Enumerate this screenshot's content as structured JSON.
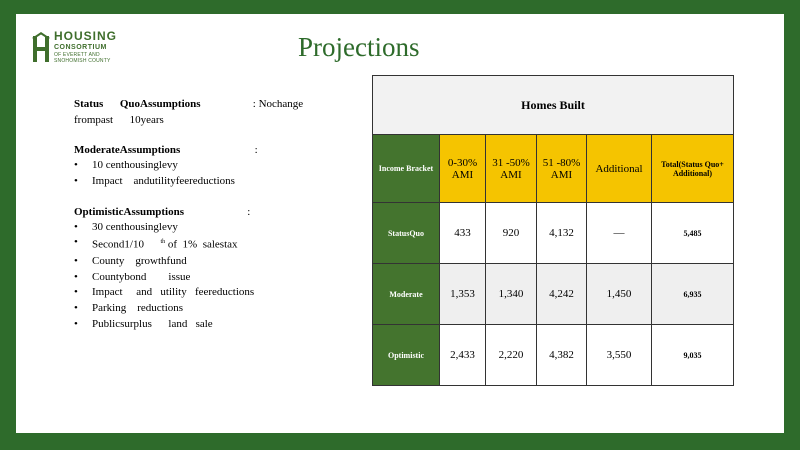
{
  "logo": {
    "line1": "HOUSING",
    "line2": "CONSORTIUM",
    "line3": "OF EVERETT AND",
    "line4": "SNOHOMISH COUNTY"
  },
  "title": "Projections",
  "left": {
    "status_quo": {
      "heading_a": "Status",
      "heading_b": "QuoAssumptions",
      "colon_text": ": Nochange",
      "line2": "frompast      10years"
    },
    "moderate": {
      "heading": "ModerateAssumptions",
      "colon": ":",
      "items": [
        "10 centhousinglevy",
        "Impact    andutilityfeereductions"
      ]
    },
    "optimistic": {
      "heading": "OptimisticAssumptions",
      "colon": ":",
      "items": [
        "30 centhousinglevy",
        "County    growthfund",
        "Countybond        issue",
        "Impact     and   utility   feereductions",
        "Parking    reductions",
        "Publicsurplus      land   sale"
      ],
      "second_item": {
        "pre": "Second1/10      ",
        "sup": "th",
        "post": " of  1%  salestax"
      }
    }
  },
  "table": {
    "header_a": "Homes",
    "header_b": "Built",
    "columns": {
      "label": "Income Bracket",
      "c1": "0-30% AMI",
      "c2": "31 -50% AMI",
      "c3": "51 -80% AMI",
      "c4": "Additional",
      "c5": "Total(Status Quo+ Additional)"
    },
    "rows": [
      {
        "label": "StatusQuo",
        "v1": "433",
        "v2": "920",
        "v3": "4,132",
        "v4": "—",
        "total": "5,485"
      },
      {
        "label": "Moderate",
        "v1": "1,353",
        "v2": "1,340",
        "v3": "4,242",
        "v4": "1,450",
        "total": "6,935"
      },
      {
        "label": "Optimistic",
        "v1": "2,433",
        "v2": "2,220",
        "v3": "4,382",
        "v4": "3,550",
        "total": "9,035"
      }
    ]
  },
  "colors": {
    "border_green": "#2e6b2b",
    "row_label_green": "#44742e",
    "header_yellow": "#f5c400"
  }
}
